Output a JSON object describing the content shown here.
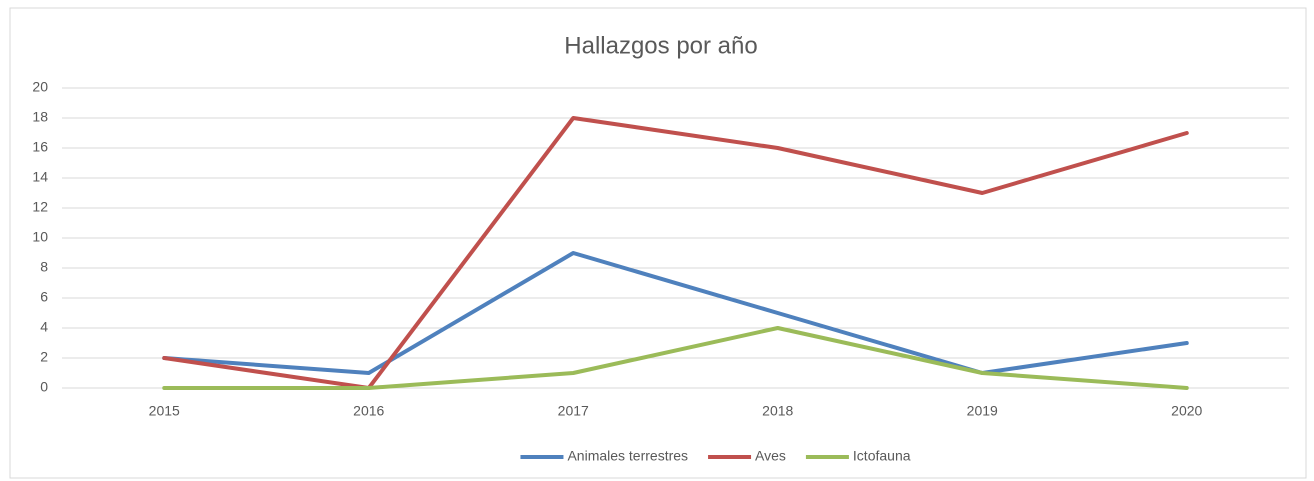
{
  "chart_data": {
    "type": "line",
    "title": "Hallazgos por año",
    "categories": [
      "2015",
      "2016",
      "2017",
      "2018",
      "2019",
      "2020"
    ],
    "series": [
      {
        "name": "Animales terrestres",
        "color": "#4f81bd",
        "values": [
          2,
          1,
          9,
          5,
          1,
          3
        ]
      },
      {
        "name": "Aves",
        "color": "#c0504d",
        "values": [
          2,
          0,
          18,
          16,
          13,
          17
        ]
      },
      {
        "name": "Ictofauna",
        "color": "#9bbb59",
        "values": [
          0,
          0,
          1,
          4,
          1,
          0
        ]
      }
    ],
    "ylim": [
      0,
      20
    ],
    "yticks": [
      0,
      2,
      4,
      6,
      8,
      10,
      12,
      14,
      16,
      18,
      20
    ],
    "grid": true,
    "legend": "bottom"
  }
}
